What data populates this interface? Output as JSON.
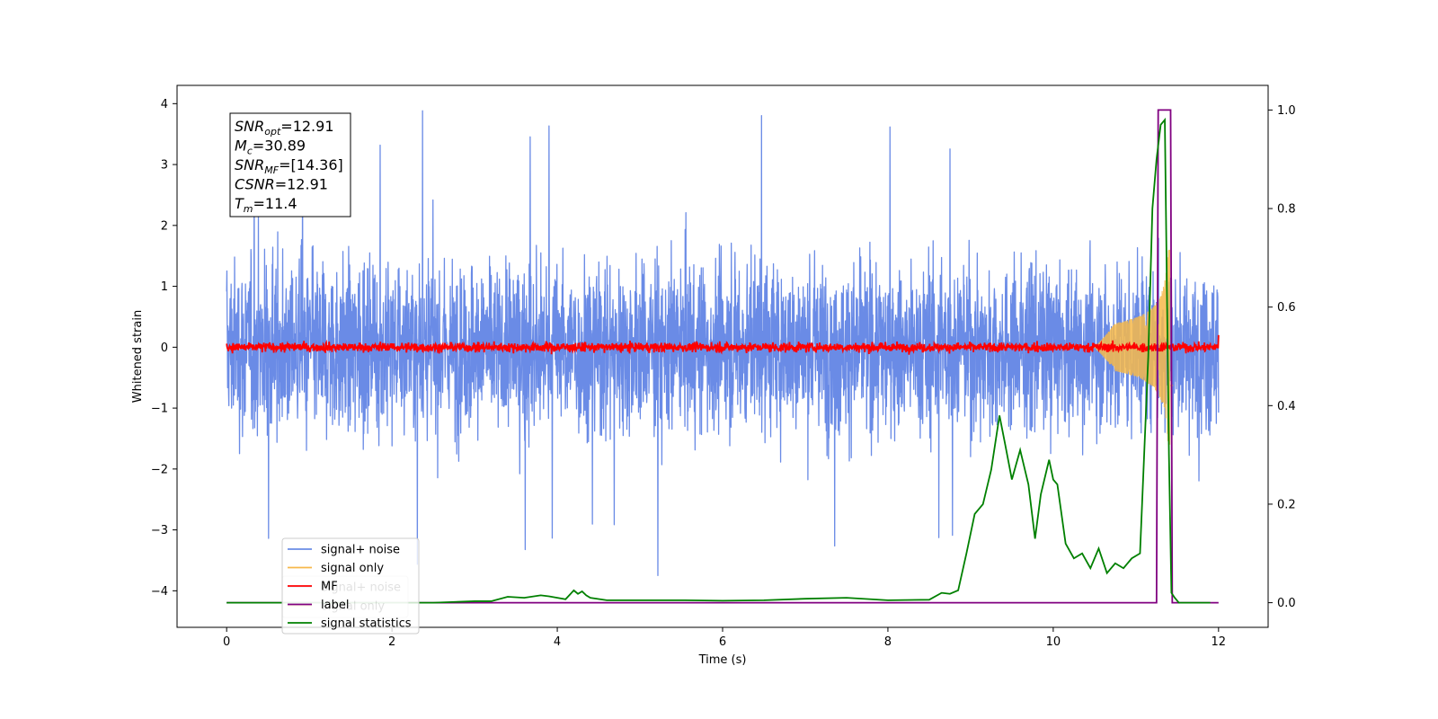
{
  "chart_data": {
    "type": "line",
    "xlabel": "Time (s)",
    "ylabel": "Whitened strain",
    "xlim": [
      -0.6,
      12.6
    ],
    "ylim": [
      -4.6,
      4.3
    ],
    "y2lim": [
      -0.05,
      1.05
    ],
    "xticks": [
      0,
      2,
      4,
      6,
      8,
      10,
      12
    ],
    "xtick_labels": [
      "0",
      "2",
      "4",
      "6",
      "8",
      "10",
      "12"
    ],
    "yticks": [
      -4,
      -3,
      -2,
      -1,
      0,
      1,
      2,
      3,
      4
    ],
    "ytick_labels": [
      "−4",
      "−3",
      "−2",
      "−1",
      "0",
      "1",
      "2",
      "3",
      "4"
    ],
    "y2ticks": [
      0.0,
      0.2,
      0.4,
      0.6,
      0.8,
      1.0
    ],
    "y2tick_labels": [
      "0.0",
      "0.2",
      "0.4",
      "0.6",
      "0.8",
      "1.0"
    ],
    "annotation": [
      {
        "base": "SNR",
        "sub": "opt",
        "value": "=12.91"
      },
      {
        "base": "M",
        "sub": "c",
        "value": "=30.89"
      },
      {
        "base": "SNR",
        "sub": "MF",
        "value": "=[14.36]"
      },
      {
        "base": "CSNR",
        "sub": "",
        "value": "=12.91"
      },
      {
        "base": "T",
        "sub": "m",
        "value": "=11.4"
      }
    ],
    "legend_front": [
      "signal+ noise",
      "signal only",
      "MF",
      "label",
      "signal statistics"
    ],
    "legend_back": [
      "signal+ noise",
      "signal only"
    ],
    "legend_placement": "bottom-left",
    "series": [
      {
        "name": "signal+ noise",
        "color": "#6a8be6",
        "axis": "left",
        "x_range": [
          0,
          12
        ],
        "envelope_max": 3.9,
        "envelope_min": -3.75,
        "typical_amplitude": 1.7
      },
      {
        "name": "signal only",
        "color": "#f6b84a",
        "axis": "left",
        "x_range": [
          10.5,
          11.45
        ],
        "peak_amplitude": 1.6,
        "peak_time": 11.4
      },
      {
        "name": "MF",
        "color": "#ff0000",
        "axis": "left",
        "x_range": [
          0,
          12
        ],
        "typical_amplitude": 0.12,
        "end_value": 0.2
      },
      {
        "name": "label",
        "color": "#800080",
        "axis": "right",
        "x": [
          0,
          11.25,
          11.27,
          11.42,
          11.44,
          12
        ],
        "y": [
          0,
          0,
          1,
          1,
          0,
          0
        ]
      },
      {
        "name": "signal statistics",
        "color": "#008000",
        "axis": "right",
        "x": [
          0,
          0.5,
          1.0,
          1.5,
          2.0,
          2.5,
          3.0,
          3.2,
          3.4,
          3.6,
          3.8,
          3.9,
          4.0,
          4.1,
          4.2,
          4.25,
          4.3,
          4.35,
          4.4,
          4.6,
          5.0,
          5.5,
          6.0,
          6.5,
          7.0,
          7.5,
          8.0,
          8.5,
          8.65,
          8.75,
          8.85,
          8.95,
          9.05,
          9.15,
          9.25,
          9.35,
          9.42,
          9.5,
          9.6,
          9.7,
          9.78,
          9.85,
          9.95,
          10.0,
          10.05,
          10.15,
          10.25,
          10.35,
          10.45,
          10.55,
          10.65,
          10.75,
          10.85,
          10.95,
          11.05,
          11.15,
          11.2,
          11.25,
          11.3,
          11.35,
          11.4,
          11.43,
          11.47,
          11.52,
          11.6,
          11.9
        ],
        "y": [
          0.0,
          0.0,
          0.0,
          0.0,
          0.0,
          0.0,
          0.003,
          0.003,
          0.012,
          0.01,
          0.015,
          0.013,
          0.01,
          0.007,
          0.025,
          0.018,
          0.023,
          0.015,
          0.01,
          0.005,
          0.005,
          0.005,
          0.004,
          0.005,
          0.008,
          0.01,
          0.005,
          0.006,
          0.02,
          0.018,
          0.025,
          0.1,
          0.18,
          0.2,
          0.27,
          0.38,
          0.32,
          0.25,
          0.31,
          0.24,
          0.13,
          0.22,
          0.29,
          0.25,
          0.24,
          0.12,
          0.09,
          0.1,
          0.07,
          0.11,
          0.06,
          0.08,
          0.07,
          0.09,
          0.1,
          0.5,
          0.8,
          0.9,
          0.97,
          0.98,
          0.3,
          0.02,
          0.01,
          0.0,
          0.0,
          0.0
        ]
      }
    ]
  }
}
